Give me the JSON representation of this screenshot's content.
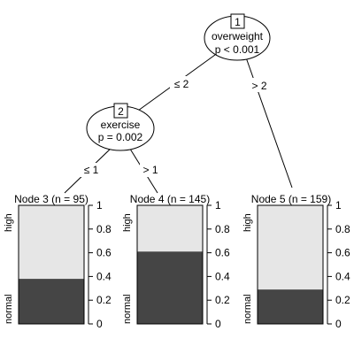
{
  "tree": {
    "inner_nodes": [
      {
        "id": "1",
        "variable": "overweight",
        "pvalue": "p < 0.001"
      },
      {
        "id": "2",
        "variable": "exercise",
        "pvalue": "p = 0.002"
      }
    ],
    "edges": [
      {
        "label": "≤ 2"
      },
      {
        "label": "> 2"
      },
      {
        "label": "≤ 1"
      },
      {
        "label": "> 1"
      }
    ],
    "terminal_nodes": [
      {
        "title": "Node 3 (n = 95)",
        "normal_fraction": 0.38
      },
      {
        "title": "Node 4 (n = 145)",
        "normal_fraction": 0.61
      },
      {
        "title": "Node 5 (n = 159)",
        "normal_fraction": 0.29
      }
    ],
    "class_labels": {
      "top": "high",
      "bottom": "normal"
    },
    "axis_ticks": [
      "0",
      "0.2",
      "0.4",
      "0.6",
      "0.8",
      "1"
    ],
    "colors": {
      "high": "#e6e6e6",
      "normal": "#454545"
    }
  }
}
